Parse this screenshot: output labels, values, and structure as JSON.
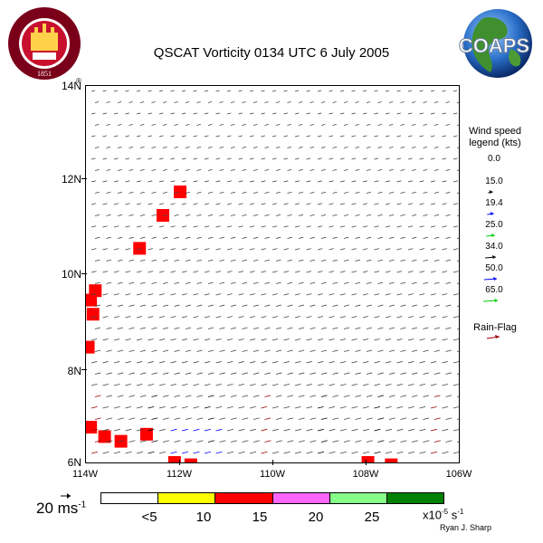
{
  "title": "QSCAT Vorticity 0134 UTC 6 July 2005",
  "logos": {
    "left": {
      "name": "florida-state-university-seal",
      "text": "FLORIDA STATE UNIVERSITY 1851"
    },
    "right": {
      "name": "coaps-globe-logo",
      "text": "COAPS"
    }
  },
  "map": {
    "lat_labels": [
      "14N",
      "12N",
      "10N",
      "8N",
      "6N"
    ],
    "lon_labels": [
      "114W",
      "112W",
      "110W",
      "108W",
      "106W"
    ],
    "lat_range": [
      6,
      14
    ],
    "lon_range": [
      -114,
      -106
    ]
  },
  "wind_legend": {
    "title_line1": "Wind speed",
    "title_line2": "legend (kts)",
    "entries": [
      {
        "value": "0.0",
        "color": "#ffffff"
      },
      {
        "value": "15.0",
        "color": "#000000"
      },
      {
        "value": "19.4",
        "color": "#0000ff"
      },
      {
        "value": "25.0",
        "color": "#00cc00"
      },
      {
        "value": "34.0",
        "color": "#000000"
      },
      {
        "value": "50.0",
        "color": "#0000ff"
      },
      {
        "value": "65.0",
        "color": "#00cc00"
      }
    ],
    "rain_flag_label": "Rain-Flag",
    "rain_flag_color": "#990000"
  },
  "colorbar": {
    "colors": [
      "#ffffff",
      "#ffff00",
      "#ff0000",
      "#ff66ff",
      "#88ff88",
      "#008000"
    ],
    "labels": [
      "<5",
      "10",
      "15",
      "20",
      "25"
    ],
    "units_base": "x10",
    "units_exp": "-5",
    "units_tail": " s",
    "units_exp2": "-1"
  },
  "scale_arrow": {
    "label": "20 ms",
    "exp": "-1"
  },
  "credit": "Ryan J. Sharp",
  "vorticity_cells": [
    {
      "lat": 11.75,
      "lon": -111.98,
      "level": "10"
    },
    {
      "lat": 11.25,
      "lon": -112.35,
      "level": "10"
    },
    {
      "lat": 10.55,
      "lon": -112.85,
      "level": "10"
    },
    {
      "lat": 9.65,
      "lon": -113.8,
      "level": "10"
    },
    {
      "lat": 9.45,
      "lon": -113.9,
      "level": "10"
    },
    {
      "lat": 9.15,
      "lon": -113.85,
      "level": "10"
    },
    {
      "lat": 8.45,
      "lon": -113.95,
      "level": "10"
    },
    {
      "lat": 6.75,
      "lon": -113.9,
      "level": "10"
    },
    {
      "lat": 6.55,
      "lon": -113.6,
      "level": "10"
    },
    {
      "lat": 6.45,
      "lon": -113.25,
      "level": "10"
    },
    {
      "lat": 6.6,
      "lon": -112.7,
      "level": "10"
    },
    {
      "lat": 6.0,
      "lon": -112.1,
      "level": "10"
    },
    {
      "lat": 5.95,
      "lon": -111.75,
      "level": "10"
    },
    {
      "lat": 6.0,
      "lon": -107.95,
      "level": "10"
    },
    {
      "lat": 5.95,
      "lon": -107.45,
      "level": "10"
    }
  ]
}
